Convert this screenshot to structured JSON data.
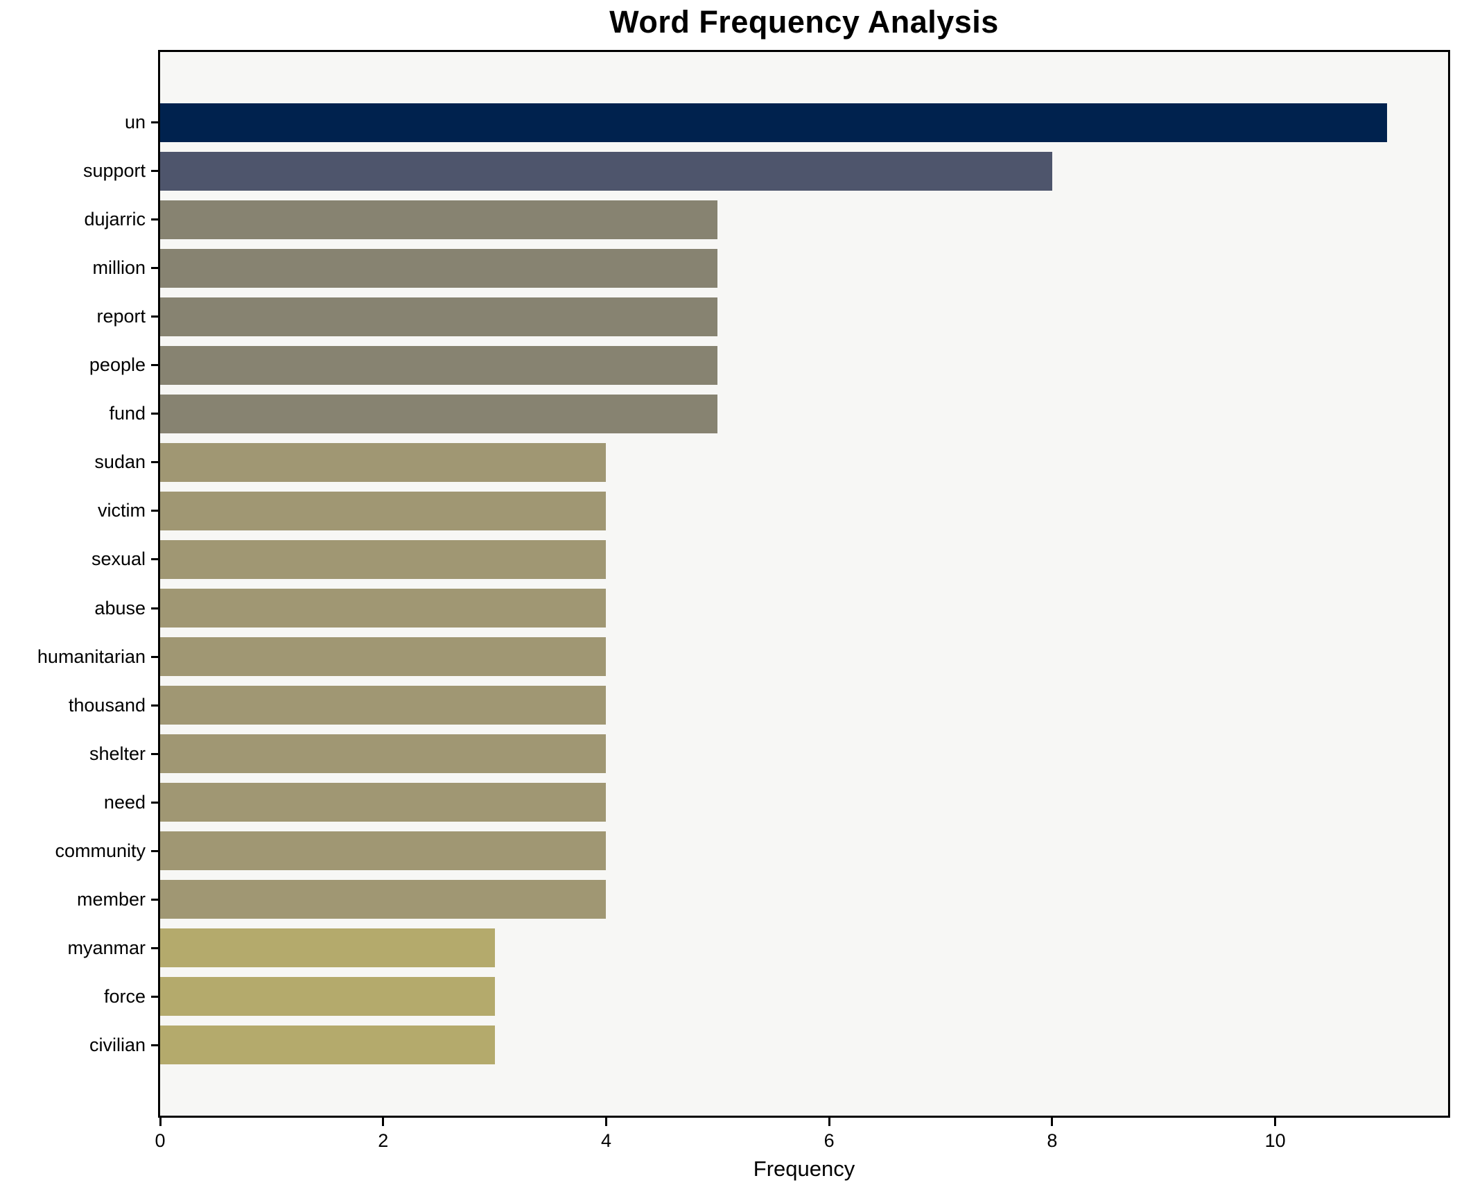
{
  "title": "Word Frequency Analysis",
  "chart_data": {
    "type": "bar",
    "orientation": "horizontal",
    "title": "Word Frequency Analysis",
    "xlabel": "Frequency",
    "ylabel": "",
    "categories": [
      "un",
      "support",
      "dujarric",
      "million",
      "report",
      "people",
      "fund",
      "sudan",
      "victim",
      "sexual",
      "abuse",
      "humanitarian",
      "thousand",
      "shelter",
      "need",
      "community",
      "member",
      "myanmar",
      "force",
      "civilian"
    ],
    "values": [
      11,
      8,
      5,
      5,
      5,
      5,
      5,
      4,
      4,
      4,
      4,
      4,
      4,
      4,
      4,
      4,
      4,
      3,
      3,
      3
    ],
    "bar_colors": [
      "#00224e",
      "#4e556c",
      "#878371",
      "#878371",
      "#878371",
      "#878371",
      "#878371",
      "#a09773",
      "#a09773",
      "#a09773",
      "#a09773",
      "#a09773",
      "#a09773",
      "#a09773",
      "#a09773",
      "#a09773",
      "#a09773",
      "#b4aa6c",
      "#b4aa6c",
      "#b4aa6c"
    ],
    "xlim": [
      0,
      11.55
    ],
    "xticks": [
      0,
      2,
      4,
      6,
      8,
      10
    ],
    "grid": false,
    "legend_position": "none",
    "bar_height_fraction": 0.8,
    "colors": {
      "figure_background": "#ffffff",
      "plot_background": "#f7f7f5",
      "spine": "#000000",
      "text": "#000000"
    }
  }
}
